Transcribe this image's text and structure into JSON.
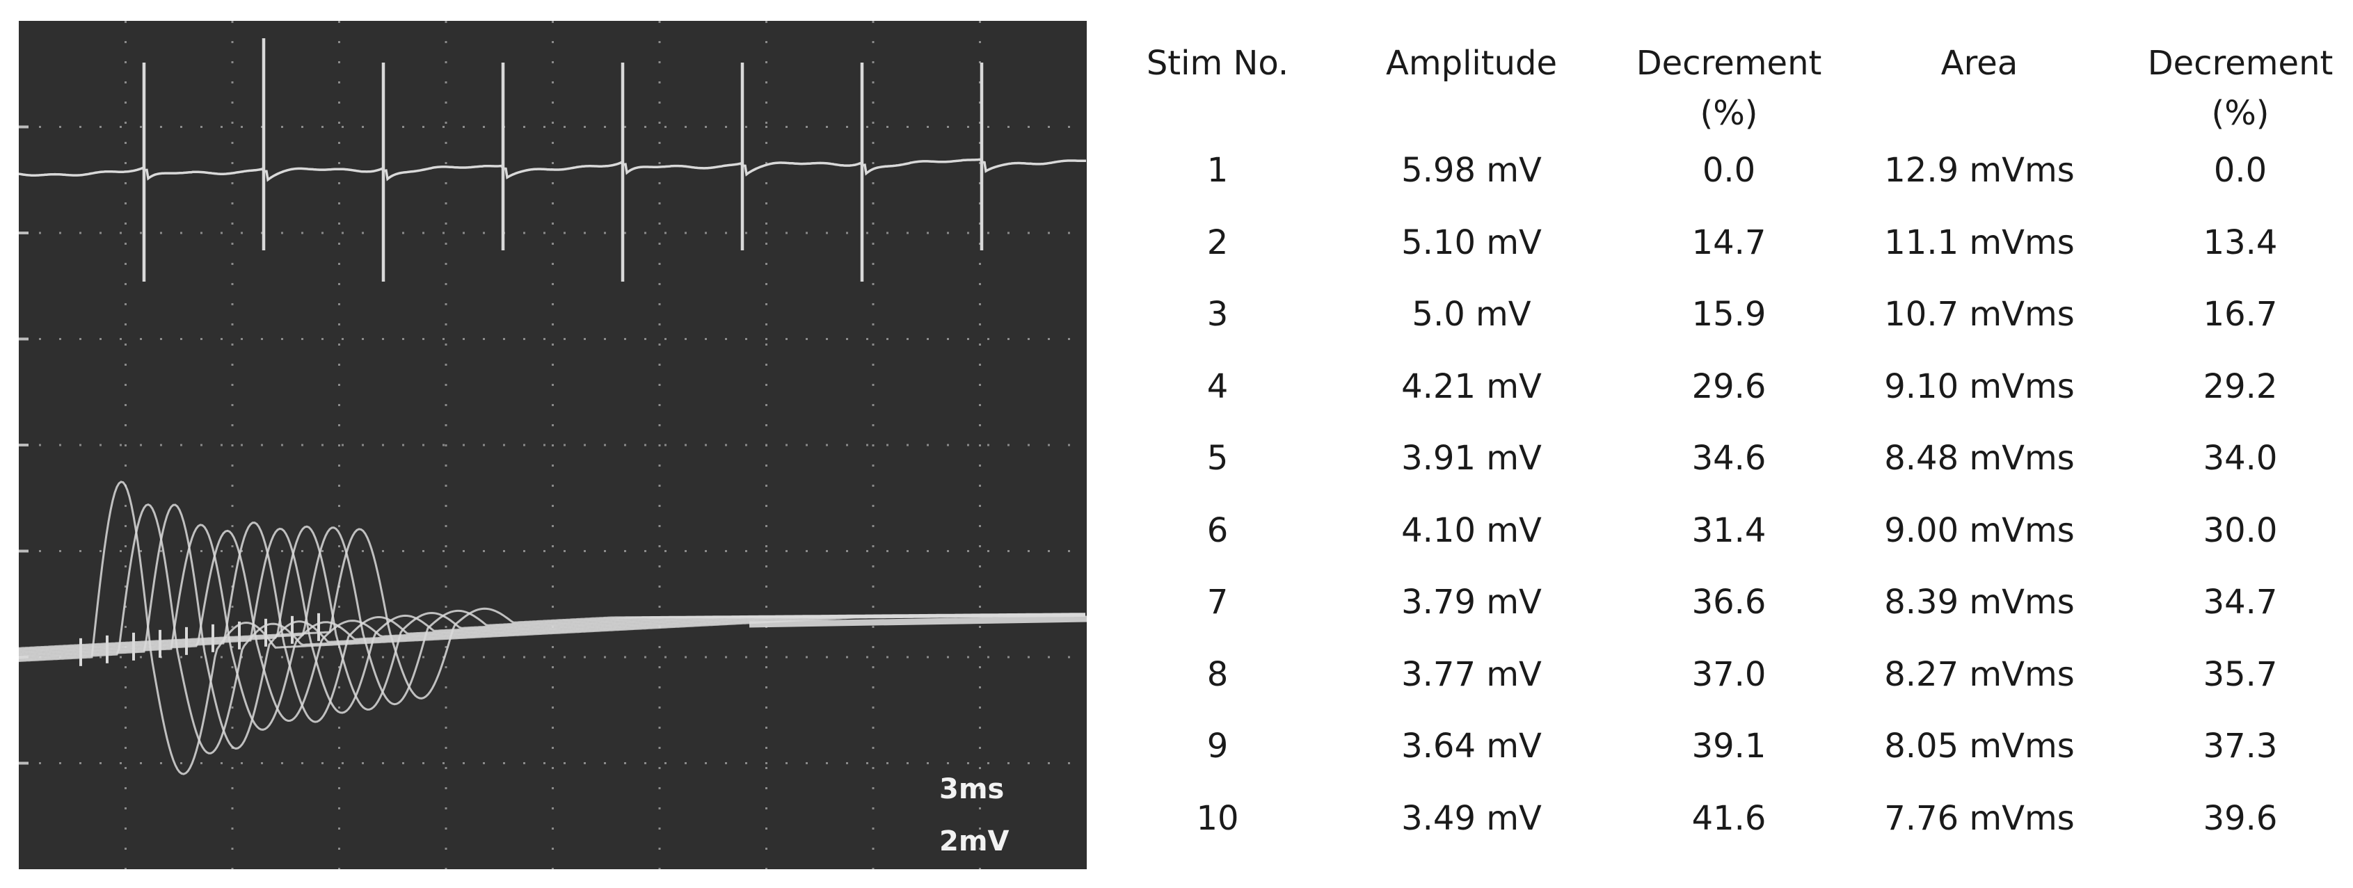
{
  "chart_data": [
    {
      "type": "line",
      "title": "",
      "subtitle": "",
      "xlabel": "",
      "ylabel": "",
      "grid": true,
      "legend": "none",
      "annotations": [
        "3ms",
        "2mV"
      ],
      "stimulus_count": 10,
      "series": [
        {
          "trace": "stimulus-train",
          "color": "#d9d9d9"
        },
        {
          "trace": "cmap-responses",
          "color": "#d9d9d9"
        }
      ]
    },
    {
      "type": "table",
      "columns": [
        "Stim No.",
        "Amplitude",
        "Decrement\n(%)",
        "Area",
        "Decrement\n(%)"
      ],
      "rows": [
        [
          "1",
          "5.98 mV",
          "0.0",
          "12.9 mVms",
          "0.0"
        ],
        [
          "2",
          "5.10 mV",
          "14.7",
          "11.1 mVms",
          "13.4"
        ],
        [
          "3",
          "5.0 mV",
          "15.9",
          "10.7 mVms",
          "16.7"
        ],
        [
          "4",
          "4.21 mV",
          "29.6",
          "9.10 mVms",
          "29.2"
        ],
        [
          "5",
          "3.91 mV",
          "34.6",
          "8.48 mVms",
          "34.0"
        ],
        [
          "6",
          "4.10 mV",
          "31.4",
          "9.00 mVms",
          "30.0"
        ],
        [
          "7",
          "3.79 mV",
          "36.6",
          "8.39 mVms",
          "34.7"
        ],
        [
          "8",
          "3.77 mV",
          "37.0",
          "8.27 mVms",
          "35.7"
        ],
        [
          "9",
          "3.64 mV",
          "39.1",
          "8.05 mVms",
          "37.3"
        ],
        [
          "10",
          "3.49 mV",
          "41.6",
          "7.76 mVms",
          "39.6"
        ]
      ]
    }
  ]
}
